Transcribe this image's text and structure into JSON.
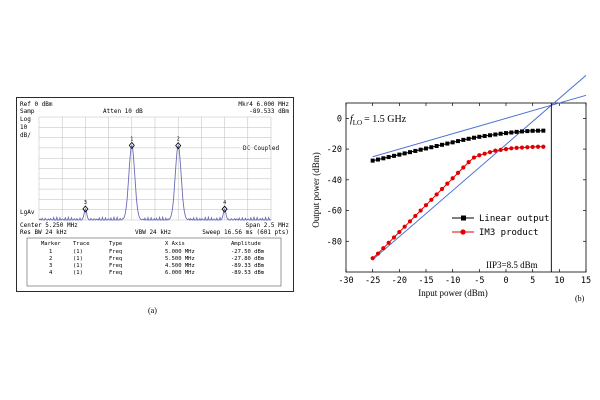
{
  "analyzer": {
    "ref": "Ref 0 dBm",
    "atten": "Atten 10 dB",
    "mkr": "Mkr4  6.000 MHz",
    "mkr_val": "-89.533 dBm",
    "left_labels": [
      "Samp",
      "Log",
      "10",
      "dB/"
    ],
    "dc": "DC Coupled",
    "lgav": "LgAv",
    "center": "Center 5.250 MHz",
    "span": "Span 2.5 MHz",
    "res": "Res BW 24 kHz",
    "vbw": "VBW 24 kHz",
    "sweep": "Sweep 16.56 ms (601 pts)",
    "table_headers": [
      "Marker",
      "Trace",
      "Type",
      "X Axis",
      "Amplitude"
    ],
    "table_rows": [
      [
        "1",
        "(1)",
        "Freq",
        "5.000 MHz",
        "-27.50 dBm"
      ],
      [
        "2",
        "(1)",
        "Freq",
        "5.500 MHz",
        "-27.80 dBm"
      ],
      [
        "3",
        "(1)",
        "Freq",
        "4.500 MHz",
        "-89.33 dBm"
      ],
      [
        "4",
        "(1)",
        "Freq",
        "6.000 MHz",
        "-89.53 dBm"
      ]
    ],
    "marker_labels": [
      "1",
      "2",
      "3",
      "4"
    ],
    "caption": "(a)"
  },
  "chart_data": {
    "type": "line",
    "annotation_lo": "= 1.5 GHz",
    "lo_symbol": "f",
    "lo_sub": "LO",
    "iip3_label": "IIP3=8.5 dBm",
    "xlabel": "Input power (dBm)",
    "ylabel": "Output power (dBm)",
    "xlim": [
      -30,
      15
    ],
    "ylim": [
      -100,
      10
    ],
    "xticks": [
      -30,
      -25,
      -20,
      -15,
      -10,
      -5,
      0,
      5,
      10,
      15
    ],
    "yticks": [
      -80,
      -60,
      -40,
      -20,
      0
    ],
    "caption": "(b)",
    "series": [
      {
        "name": "Linear output",
        "color": "#000000",
        "marker": "square",
        "x": [
          -25,
          -24,
          -23,
          -22,
          -21,
          -20,
          -19,
          -18,
          -17,
          -16,
          -15,
          -14,
          -13,
          -12,
          -11,
          -10,
          -9,
          -8,
          -7,
          -6,
          -5,
          -4,
          -3,
          -2,
          -1,
          0,
          1,
          2,
          3,
          4,
          5,
          6,
          7
        ],
        "y": [
          -27.5,
          -26.8,
          -26,
          -25.2,
          -24.4,
          -23.6,
          -22.8,
          -22,
          -21.2,
          -20.4,
          -19.6,
          -18.8,
          -18,
          -17.2,
          -16.4,
          -15.6,
          -14.8,
          -14,
          -13.3,
          -12.6,
          -12,
          -11.5,
          -11,
          -10.5,
          -10,
          -9.6,
          -9.2,
          -8.8,
          -8.5,
          -8.3,
          -8.1,
          -8,
          -8
        ]
      },
      {
        "name": "IM3 product",
        "color": "#e00000",
        "marker": "circle",
        "x": [
          -25,
          -24,
          -23,
          -22,
          -21,
          -20,
          -19,
          -18,
          -17,
          -16,
          -15,
          -14,
          -13,
          -12,
          -11,
          -10,
          -9,
          -8,
          -7,
          -6,
          -5,
          -4,
          -3,
          -2,
          -1,
          0,
          1,
          2,
          3,
          4,
          5,
          6,
          7
        ],
        "y": [
          -91,
          -88,
          -84.5,
          -81,
          -77.5,
          -74,
          -70.5,
          -67,
          -63.5,
          -60,
          -56.5,
          -53,
          -49.5,
          -46,
          -42.5,
          -39,
          -35.5,
          -32,
          -28.5,
          -25.5,
          -24,
          -23,
          -22,
          -21,
          -20.5,
          -20,
          -19.5,
          -19.2,
          -19,
          -18.8,
          -18.6,
          -18.5,
          -18.5
        ]
      }
    ],
    "fit_lines": [
      {
        "name": "",
        "color": "#4a6fd0",
        "x": [
          -25,
          15
        ],
        "y": [
          -25,
          15
        ]
      },
      {
        "name": "",
        "color": "#4a6fd0",
        "x": [
          -25,
          15
        ],
        "y": [
          -92,
          28
        ]
      }
    ],
    "iip3_x": 8.5
  }
}
